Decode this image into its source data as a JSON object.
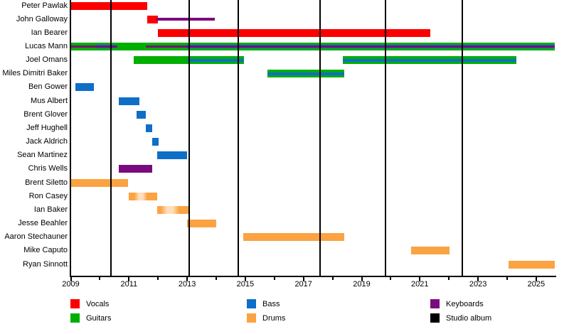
{
  "chart_data": {
    "type": "timeline",
    "description": "Band members timeline (gantt-style), roles as colored bars per member, vertical black lines mark studio album releases",
    "x_axis": {
      "min": 2009,
      "max": 2025.65,
      "labeled_ticks": [
        2009,
        2011,
        2013,
        2015,
        2017,
        2019,
        2021,
        2023,
        2025
      ],
      "minor_tick_every": 1,
      "grid": false
    },
    "colors": {
      "vocals": "#fa0000",
      "guitars": "#00ae00",
      "bass": "#0e6ec8",
      "drums": "#fba342",
      "keyboards": "#7a0b7e",
      "album": "#000000"
    },
    "legend": {
      "position": "bottom",
      "items": [
        {
          "label": "Vocals",
          "role": "vocals",
          "col": 0,
          "row": 0
        },
        {
          "label": "Guitars",
          "role": "guitars",
          "col": 0,
          "row": 1
        },
        {
          "label": "Bass",
          "role": "bass",
          "col": 1,
          "row": 0
        },
        {
          "label": "Drums",
          "role": "drums",
          "col": 1,
          "row": 1
        },
        {
          "label": "Keyboards",
          "role": "keyboards",
          "col": 2,
          "row": 0
        },
        {
          "label": "Studio album",
          "role": "album",
          "col": 2,
          "row": 1
        }
      ]
    },
    "album_release_lines": [
      2010.37,
      2013.08,
      2014.75,
      2017.58,
      2019.83,
      2022.47
    ],
    "members": [
      {
        "name": "Peter Pawlak",
        "segments": [
          {
            "role": "vocals",
            "style": "bar",
            "start": 2009.0,
            "end": 2011.64
          }
        ]
      },
      {
        "name": "John Galloway",
        "segments": [
          {
            "role": "vocals",
            "style": "bar",
            "start": 2011.62,
            "end": 2012.0
          },
          {
            "role": "keyboards",
            "style": "line",
            "start": 2011.95,
            "end": 2013.94
          }
        ]
      },
      {
        "name": "Ian Bearer",
        "segments": [
          {
            "role": "vocals",
            "style": "bar",
            "start": 2012.0,
            "end": 2021.37
          }
        ]
      },
      {
        "name": "Lucas Mann",
        "segments": [
          {
            "role": "guitars",
            "style": "bar",
            "start": 2009.0,
            "end": 2025.65
          },
          {
            "role": "bass",
            "style": "stripe",
            "start": 2009.86,
            "end": 2010.54
          },
          {
            "role": "bass",
            "style": "stripe",
            "start": 2012.96,
            "end": 2025.65
          },
          {
            "role": "keyboards",
            "style": "thin",
            "start": 2009.0,
            "end": 2010.61
          },
          {
            "role": "keyboards",
            "style": "thin",
            "start": 2011.59,
            "end": 2025.65
          }
        ]
      },
      {
        "name": "Joel Omans",
        "segments": [
          {
            "role": "guitars",
            "style": "bar",
            "start": 2011.16,
            "end": 2014.95
          },
          {
            "role": "bass",
            "style": "line",
            "start": 2012.99,
            "end": 2014.95
          },
          {
            "role": "guitars",
            "style": "bar",
            "start": 2018.36,
            "end": 2024.33
          },
          {
            "role": "bass",
            "style": "line",
            "start": 2018.36,
            "end": 2024.33
          }
        ]
      },
      {
        "name": "Miles Dimitri Baker",
        "segments": [
          {
            "role": "guitars",
            "style": "bar",
            "start": 2015.77,
            "end": 2018.41
          },
          {
            "role": "bass",
            "style": "line",
            "start": 2015.77,
            "end": 2018.41
          }
        ]
      },
      {
        "name": "Ben Gower",
        "segments": [
          {
            "role": "bass",
            "style": "bar",
            "start": 2009.15,
            "end": 2009.8
          }
        ]
      },
      {
        "name": "Mus Albert",
        "segments": [
          {
            "role": "bass",
            "style": "bar",
            "start": 2010.64,
            "end": 2011.37
          }
        ]
      },
      {
        "name": "Brent Glover",
        "segments": [
          {
            "role": "bass",
            "style": "bar",
            "start": 2011.27,
            "end": 2011.57
          }
        ]
      },
      {
        "name": "Jeff Hughell",
        "segments": [
          {
            "role": "bass",
            "style": "bar",
            "start": 2011.57,
            "end": 2011.81
          }
        ]
      },
      {
        "name": "Jack Aldrich",
        "segments": [
          {
            "role": "bass",
            "style": "bar",
            "start": 2011.79,
            "end": 2012.03
          }
        ]
      },
      {
        "name": "Sean Martinez",
        "segments": [
          {
            "role": "bass",
            "style": "bar",
            "start": 2011.98,
            "end": 2012.99
          }
        ]
      },
      {
        "name": "Chris Wells",
        "segments": [
          {
            "role": "keyboards",
            "style": "bar",
            "start": 2010.66,
            "end": 2011.81
          }
        ]
      },
      {
        "name": "Brent Siletto",
        "segments": [
          {
            "role": "drums",
            "style": "bar",
            "start": 2009.02,
            "end": 2010.98
          }
        ]
      },
      {
        "name": "Ron Casey",
        "segments": [
          {
            "role": "drums",
            "style": "bar",
            "start": 2011.0,
            "end": 2011.98,
            "fade": [
              2011.18,
              2011.62
            ]
          }
        ]
      },
      {
        "name": "Ian Baker",
        "segments": [
          {
            "role": "drums",
            "style": "bar",
            "start": 2011.98,
            "end": 2013.06,
            "fade": [
              2012.1,
              2012.72
            ]
          }
        ]
      },
      {
        "name": "Jesse Beahler",
        "segments": [
          {
            "role": "drums",
            "style": "bar",
            "start": 2012.99,
            "end": 2014.01
          }
        ]
      },
      {
        "name": "Aaron Stechauner",
        "segments": [
          {
            "role": "drums",
            "style": "bar",
            "start": 2014.92,
            "end": 2018.41
          }
        ]
      },
      {
        "name": "Mike Caputo",
        "segments": [
          {
            "role": "drums",
            "style": "bar",
            "start": 2020.69,
            "end": 2022.01
          }
        ]
      },
      {
        "name": "Ryan Sinnott",
        "segments": [
          {
            "role": "drums",
            "style": "bar",
            "start": 2024.04,
            "end": 2025.65
          }
        ]
      }
    ]
  }
}
